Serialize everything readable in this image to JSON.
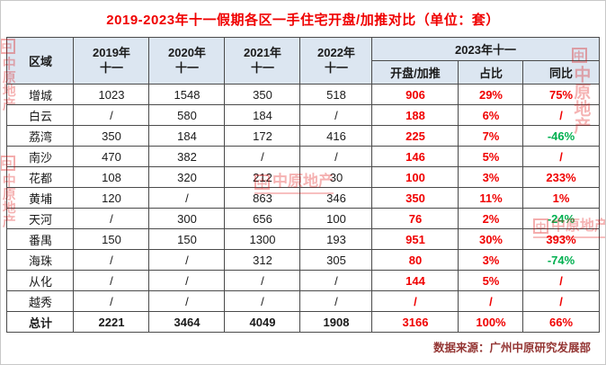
{
  "page": {
    "title": "2019-2023年十一假期各区一手住宅开盘/加推对比（单位：套）",
    "source": "数据来源：广州中原研究发展部",
    "watermark": "中原地产",
    "watermark_logo_glyph": "中"
  },
  "colors": {
    "title_red": "#f00000",
    "header_bg": "#dce6f1",
    "highlight_red": "#f00000",
    "negative_green": "#00b050",
    "source_text": "#943634",
    "grid_line": "#4a4a4a"
  },
  "chart_data": {
    "type": "table",
    "title": "2019-2023年十一假期各区一手住宅开盘/加推对比（单位：套）",
    "header": {
      "region": "区域",
      "year_columns": [
        {
          "year": "2019年",
          "period": "十一"
        },
        {
          "year": "2020年",
          "period": "十一"
        },
        {
          "year": "2021年",
          "period": "十一"
        },
        {
          "year": "2022年",
          "period": "十一"
        }
      ],
      "group_2023": "2023年十一",
      "sub_2023": [
        "开盘/加推",
        "占比",
        "同比"
      ]
    },
    "rows": [
      {
        "region": "增城",
        "y2019": "1023",
        "y2020": "1548",
        "y2021": "350",
        "y2022": "518",
        "open_2023": "906",
        "share": "29%",
        "yoy": "75%"
      },
      {
        "region": "白云",
        "y2019": "/",
        "y2020": "580",
        "y2021": "184",
        "y2022": "/",
        "open_2023": "188",
        "share": "6%",
        "yoy": "/"
      },
      {
        "region": "荔湾",
        "y2019": "350",
        "y2020": "184",
        "y2021": "172",
        "y2022": "416",
        "open_2023": "225",
        "share": "7%",
        "yoy": "-46%"
      },
      {
        "region": "南沙",
        "y2019": "470",
        "y2020": "382",
        "y2021": "/",
        "y2022": "/",
        "open_2023": "146",
        "share": "5%",
        "yoy": "/"
      },
      {
        "region": "花都",
        "y2019": "108",
        "y2020": "320",
        "y2021": "212",
        "y2022": "30",
        "open_2023": "100",
        "share": "3%",
        "yoy": "233%"
      },
      {
        "region": "黄埔",
        "y2019": "120",
        "y2020": "/",
        "y2021": "863",
        "y2022": "346",
        "open_2023": "350",
        "share": "11%",
        "yoy": "1%"
      },
      {
        "region": "天河",
        "y2019": "/",
        "y2020": "300",
        "y2021": "656",
        "y2022": "100",
        "open_2023": "76",
        "share": "2%",
        "yoy": "-24%"
      },
      {
        "region": "番禺",
        "y2019": "150",
        "y2020": "150",
        "y2021": "1300",
        "y2022": "193",
        "open_2023": "951",
        "share": "30%",
        "yoy": "393%"
      },
      {
        "region": "海珠",
        "y2019": "/",
        "y2020": "/",
        "y2021": "312",
        "y2022": "305",
        "open_2023": "80",
        "share": "3%",
        "yoy": "-74%"
      },
      {
        "region": "从化",
        "y2019": "/",
        "y2020": "/",
        "y2021": "/",
        "y2022": "/",
        "open_2023": "144",
        "share": "5%",
        "yoy": "/"
      },
      {
        "region": "越秀",
        "y2019": "/",
        "y2020": "/",
        "y2021": "/",
        "y2022": "/",
        "open_2023": "/",
        "share": "/",
        "yoy": "/"
      }
    ],
    "total_row": {
      "region": "总计",
      "y2019": "2221",
      "y2020": "3464",
      "y2021": "4049",
      "y2022": "1908",
      "open_2023": "3166",
      "share": "100%",
      "yoy": "66%"
    }
  }
}
